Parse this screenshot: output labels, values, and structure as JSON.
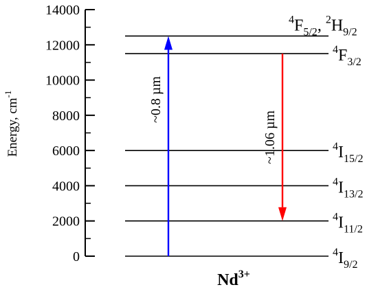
{
  "axis": {
    "label_main": "Energy, cm",
    "label_exp": "-1",
    "min": 0,
    "max": 14000,
    "major_ticks": [
      {
        "value": 0,
        "label": "0"
      },
      {
        "value": 2000,
        "label": "2000"
      },
      {
        "value": 4000,
        "label": "4000"
      },
      {
        "value": 6000,
        "label": "6000"
      },
      {
        "value": 8000,
        "label": "8000"
      },
      {
        "value": 10000,
        "label": "10000"
      },
      {
        "value": 12000,
        "label": "12000"
      },
      {
        "value": 14000,
        "label": "14000"
      }
    ],
    "minor_step": 1000
  },
  "levels": [
    {
      "energy": 0,
      "parts": [
        {
          "t": "4",
          "k": "sup"
        },
        {
          "t": "I",
          "k": "base"
        },
        {
          "t": "9/2",
          "k": "sub"
        }
      ]
    },
    {
      "energy": 2000,
      "parts": [
        {
          "t": "4",
          "k": "sup"
        },
        {
          "t": "I",
          "k": "base"
        },
        {
          "t": "11/2",
          "k": "sub"
        }
      ]
    },
    {
      "energy": 4000,
      "parts": [
        {
          "t": "4",
          "k": "sup"
        },
        {
          "t": "I",
          "k": "base"
        },
        {
          "t": "13/2",
          "k": "sub"
        }
      ]
    },
    {
      "energy": 6000,
      "parts": [
        {
          "t": "4",
          "k": "sup"
        },
        {
          "t": "I",
          "k": "base"
        },
        {
          "t": "15/2",
          "k": "sub"
        }
      ]
    },
    {
      "energy": 11500,
      "parts": [
        {
          "t": "4",
          "k": "sup"
        },
        {
          "t": "F",
          "k": "base"
        },
        {
          "t": "3/2",
          "k": "sub"
        }
      ]
    },
    {
      "energy": 12500,
      "parts": [
        {
          "t": "4",
          "k": "sup"
        },
        {
          "t": "F",
          "k": "base"
        },
        {
          "t": "5/2",
          "k": "sub"
        },
        {
          "t": ", ",
          "k": "base"
        },
        {
          "t": "2",
          "k": "sup"
        },
        {
          "t": "H",
          "k": "base"
        },
        {
          "t": "9/2",
          "k": "sub"
        }
      ]
    }
  ],
  "transitions": [
    {
      "label": "~0.8 µm",
      "from_energy": 0,
      "to_energy": 12500,
      "color": "#0000ff"
    },
    {
      "label": "~1.06 µm",
      "from_energy": 11500,
      "to_energy": 2000,
      "color": "#ff0000"
    }
  ],
  "ion": {
    "base": "Nd",
    "sup": "3+"
  }
}
